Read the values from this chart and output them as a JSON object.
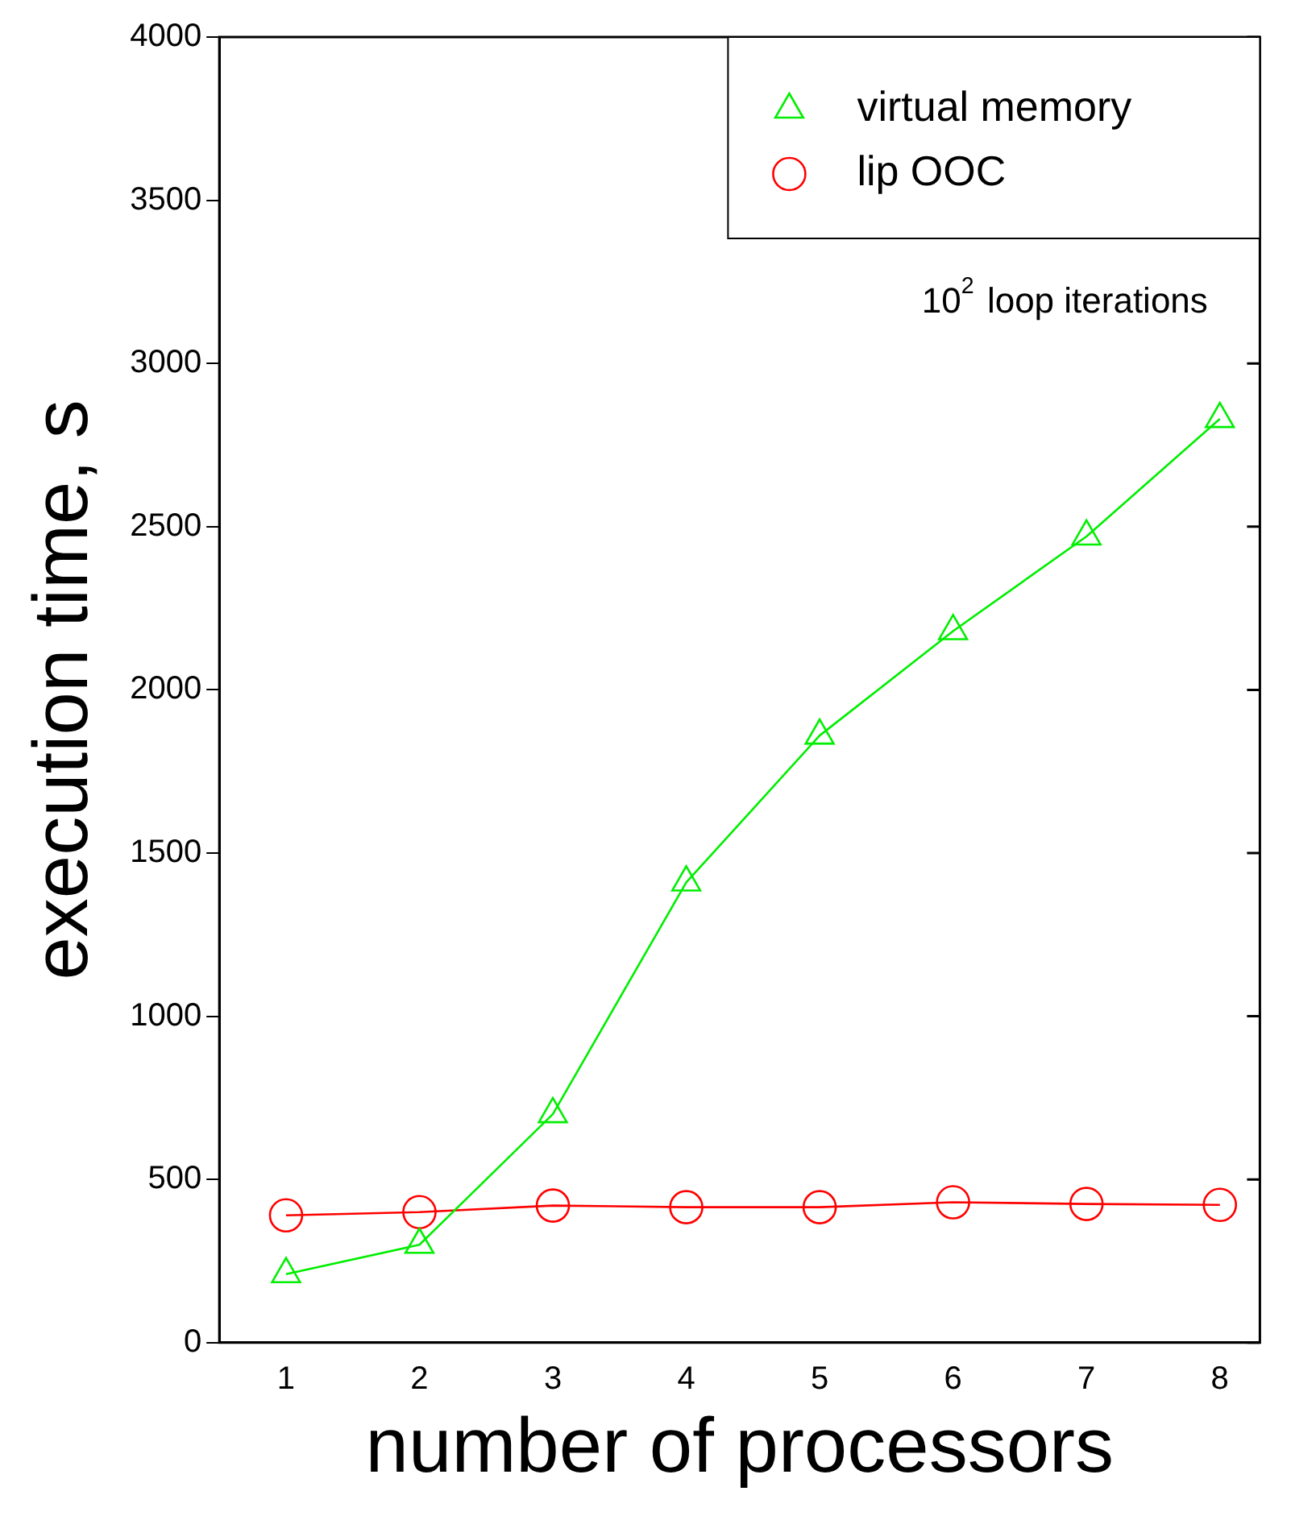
{
  "chart_data": {
    "type": "line",
    "xlabel": "number of processors",
    "ylabel": "execution time, s",
    "x": [
      1,
      2,
      3,
      4,
      5,
      6,
      7,
      8
    ],
    "series": [
      {
        "name": "virtual memory",
        "color": "#00ee00",
        "marker": "triangle",
        "values": [
          210,
          300,
          700,
          1410,
          1860,
          2180,
          2470,
          2830
        ]
      },
      {
        "name": "lip OOC",
        "color": "#ff0000",
        "marker": "circle",
        "values": [
          390,
          400,
          420,
          415,
          415,
          430,
          425,
          422
        ]
      }
    ],
    "xlim": [
      0.5,
      8.3
    ],
    "xticks": [
      1,
      2,
      3,
      4,
      5,
      6,
      7,
      8
    ],
    "ylim": [
      0,
      4000
    ],
    "yticks": [
      0,
      500,
      1000,
      1500,
      2000,
      2500,
      3000,
      3500,
      4000
    ],
    "grid": false,
    "legend": "top right",
    "line_style": "solid",
    "annotations": [
      "10$^{2}$ loop iterations"
    ]
  }
}
